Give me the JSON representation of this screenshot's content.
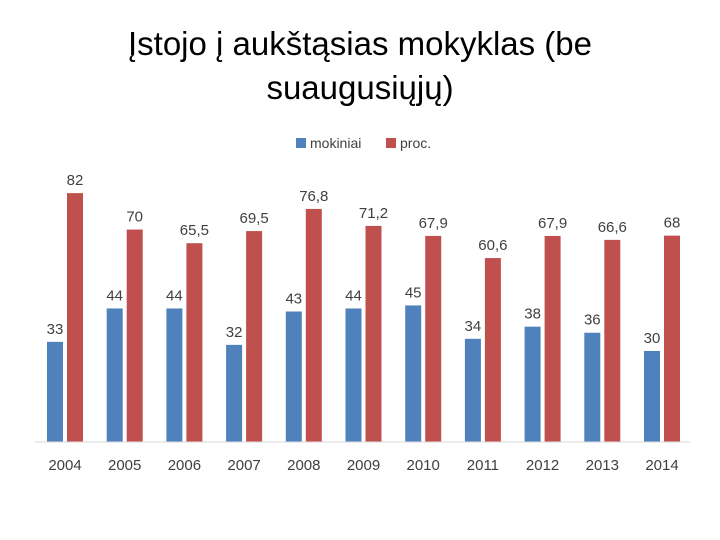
{
  "slide": {
    "title_line1": "Įstojo į aukštąsias mokyklas (be",
    "title_line2": "suaugusiųjų)"
  },
  "chart_data": {
    "type": "bar",
    "title": "Įstojo į aukštąsias mokyklas (be suaugusiųjų)",
    "categories": [
      "2004",
      "2005",
      "2006",
      "2007",
      "2008",
      "2009",
      "2010",
      "2011",
      "2012",
      "2013",
      "2014"
    ],
    "series": [
      {
        "name": "mokiniai",
        "color": "#4f81bd",
        "values": [
          33,
          44,
          44,
          32,
          43,
          44,
          45,
          34,
          38,
          36,
          30
        ],
        "labels": [
          "33",
          "44",
          "44",
          "32",
          "43",
          "44",
          "45",
          "34",
          "38",
          "36",
          "30"
        ]
      },
      {
        "name": "proc.",
        "color": "#c0504d",
        "values": [
          82,
          70,
          65.5,
          69.5,
          76.8,
          71.2,
          67.9,
          60.6,
          67.9,
          66.6,
          68
        ],
        "labels": [
          "82",
          "70",
          "65,5",
          "69,5",
          "76,8",
          "71,2",
          "67,9",
          "60,6",
          "67,9",
          "66,6",
          "68"
        ]
      }
    ],
    "ylim": [
      0,
      90
    ],
    "grid": false,
    "legend_position": "top"
  }
}
